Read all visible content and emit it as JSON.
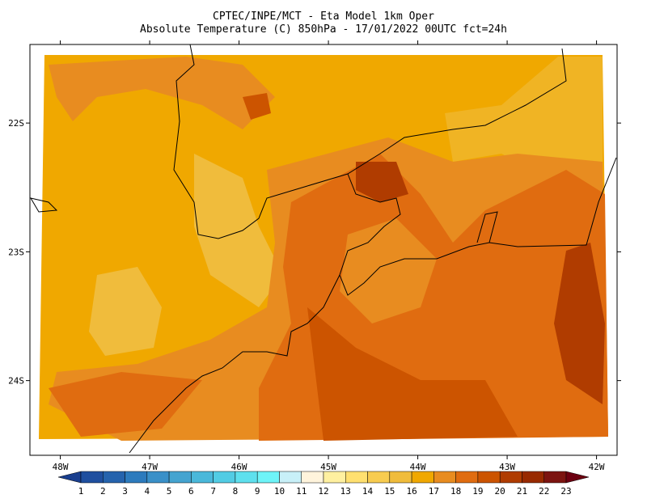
{
  "title": [
    "CPTEC/INPE/MCT -  Eta Model 1km Oper",
    "Absolute Temperature (C) 850hPa - 17/01/2022 00UTC fct=24h"
  ],
  "map": {
    "xlim": [
      -48.34,
      -41.77
    ],
    "ylim": [
      -24.58,
      -21.39
    ],
    "xticks": [
      {
        "value": -48,
        "label": "48W"
      },
      {
        "value": -47,
        "label": "47W"
      },
      {
        "value": -46,
        "label": "46W"
      },
      {
        "value": -45,
        "label": "45W"
      },
      {
        "value": -44,
        "label": "44W"
      },
      {
        "value": -43,
        "label": "43W"
      },
      {
        "value": -42,
        "label": "42W"
      }
    ],
    "yticks": [
      {
        "value": -22,
        "label": "22S"
      },
      {
        "value": -23,
        "label": "23S"
      },
      {
        "value": -24,
        "label": "24S"
      }
    ]
  },
  "colorbar": {
    "levels": [
      1,
      2,
      3,
      4,
      5,
      6,
      7,
      8,
      9,
      10,
      11,
      12,
      13,
      14,
      15,
      16,
      17,
      18,
      19,
      20,
      21,
      22,
      23
    ],
    "colors": [
      "#1a3f8f",
      "#1f4f9f",
      "#2563ad",
      "#2d7bbd",
      "#3a90c8",
      "#45a4d0",
      "#4ab8da",
      "#52cce4",
      "#5ee0ee",
      "#6ef4f8",
      "#c8f0f8",
      "#fff4dc",
      "#fff0a0",
      "#ffe070",
      "#f8cc50",
      "#f0bc3c",
      "#f0a800",
      "#e88c20",
      "#e06c10",
      "#cc5400",
      "#b03c00",
      "#982a00",
      "#7c1410",
      "#6c0010"
    ]
  }
}
